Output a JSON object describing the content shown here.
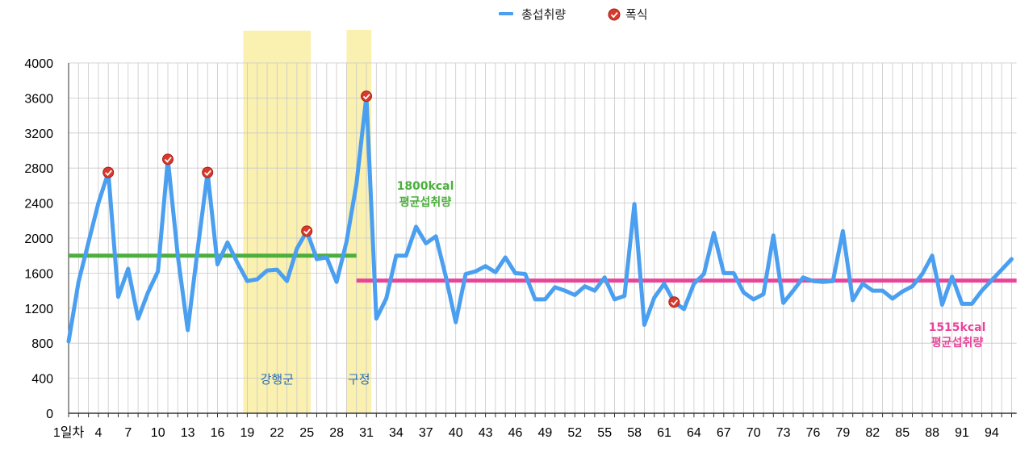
{
  "chart_data": {
    "type": "line",
    "x_start": 1,
    "x_end": 96,
    "x_tick_labels": [
      "1일차",
      "4",
      "7",
      "10",
      "13",
      "16",
      "19",
      "22",
      "25",
      "28",
      "31",
      "34",
      "37",
      "40",
      "43",
      "46",
      "49",
      "52",
      "55",
      "58",
      "61",
      "64",
      "67",
      "70",
      "73",
      "76",
      "79",
      "82",
      "85",
      "88",
      "91",
      "94"
    ],
    "y_ticks": [
      "0",
      "400",
      "800",
      "1200",
      "1600",
      "2000",
      "2400",
      "2800",
      "3200",
      "3600",
      "4000"
    ],
    "ylim": [
      0,
      4000
    ],
    "legend": {
      "series_label": "총섭취량",
      "marker_label": "폭식"
    },
    "series": [
      {
        "name": "총섭취량",
        "color": "#4a9ff0",
        "values": [
          820,
          1500,
          1950,
          2400,
          2750,
          1330,
          1650,
          1080,
          1380,
          1620,
          2900,
          1800,
          950,
          1870,
          2750,
          1700,
          1950,
          1720,
          1510,
          1530,
          1630,
          1640,
          1510,
          1880,
          2080,
          1760,
          1780,
          1500,
          1960,
          2620,
          3620,
          1080,
          1310,
          1800,
          1800,
          2130,
          1940,
          2020,
          1560,
          1040,
          1590,
          1620,
          1680,
          1610,
          1780,
          1600,
          1590,
          1300,
          1300,
          1440,
          1400,
          1350,
          1450,
          1400,
          1550,
          1300,
          1340,
          2390,
          1010,
          1320,
          1480,
          1270,
          1190,
          1480,
          1590,
          2060,
          1600,
          1600,
          1380,
          1300,
          1360,
          2030,
          1260,
          1400,
          1550,
          1510,
          1500,
          1510,
          2080,
          1290,
          1480,
          1400,
          1400,
          1310,
          1390,
          1450,
          1590,
          1800,
          1240,
          1560,
          1250,
          1250,
          1400,
          1520,
          1640,
          1760
        ]
      }
    ],
    "binge_days": [
      5,
      11,
      15,
      25,
      31,
      62
    ],
    "binge_color": "#d93a2b",
    "highlight_regions": [
      {
        "label": "강행군",
        "from": 18.6,
        "to": 25.4
      },
      {
        "label": "구정",
        "from": 29.0,
        "to": 31.5
      }
    ],
    "highlight_color": "#faf0b0",
    "average_lines": [
      {
        "value": 1800,
        "from": 1,
        "to": 30,
        "label_line1": "1800kcal",
        "label_line2": "평균섭취량",
        "color": "#4caf3c"
      },
      {
        "value": 1515,
        "from": 30,
        "to": 96.5,
        "label_line1": "1515kcal",
        "label_line2": "평균섭취량",
        "color": "#e8449a"
      }
    ]
  }
}
